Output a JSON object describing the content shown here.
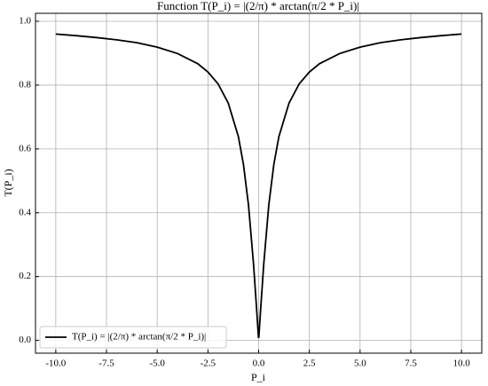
{
  "chart_data": {
    "type": "line",
    "title": "Function T(P_i) = |(2/π) * arctan(π/2 * P_i)|",
    "xlabel": "P_i",
    "ylabel": "T(P_i)",
    "x": [
      -10,
      -9,
      -8,
      -7,
      -6,
      -5,
      -4,
      -3,
      -2.5,
      -2,
      -1.5,
      -1,
      -0.75,
      -0.5,
      -0.25,
      -0.1,
      -0.01,
      0.01,
      0.1,
      0.25,
      0.5,
      0.75,
      1,
      1.5,
      2,
      2.5,
      3,
      4,
      5,
      6,
      7,
      8,
      9,
      10
    ],
    "series": [
      {
        "name": "T(P_i) = |(2/π) * arctan(π/2 * P_i)|",
        "color": "#000000",
        "values": [
          0.96,
          0.955,
          0.949,
          0.942,
          0.933,
          0.919,
          0.899,
          0.867,
          0.841,
          0.804,
          0.744,
          0.639,
          0.552,
          0.424,
          0.238,
          0.099,
          0.01,
          0.01,
          0.099,
          0.238,
          0.424,
          0.552,
          0.639,
          0.744,
          0.804,
          0.841,
          0.867,
          0.899,
          0.919,
          0.933,
          0.942,
          0.949,
          0.955,
          0.96
        ]
      }
    ],
    "xlim": [
      -11,
      11
    ],
    "ylim": [
      -0.04,
      1.025
    ],
    "xticks": [
      {
        "value": -10,
        "label": "-10.0"
      },
      {
        "value": -7.5,
        "label": "-7.5"
      },
      {
        "value": -5,
        "label": "-5.0"
      },
      {
        "value": -2.5,
        "label": "-2.5"
      },
      {
        "value": 0,
        "label": "0.0"
      },
      {
        "value": 2.5,
        "label": "2.5"
      },
      {
        "value": 5,
        "label": "5.0"
      },
      {
        "value": 7.5,
        "label": "7.5"
      },
      {
        "value": 10,
        "label": "10.0"
      }
    ],
    "yticks": [
      {
        "value": 0,
        "label": "0.0"
      },
      {
        "value": 0.2,
        "label": "0.2"
      },
      {
        "value": 0.4,
        "label": "0.4"
      },
      {
        "value": 0.6,
        "label": "0.6"
      },
      {
        "value": 0.8,
        "label": "0.8"
      },
      {
        "value": 1,
        "label": "1.0"
      }
    ],
    "grid": true,
    "legend": "lower left"
  }
}
